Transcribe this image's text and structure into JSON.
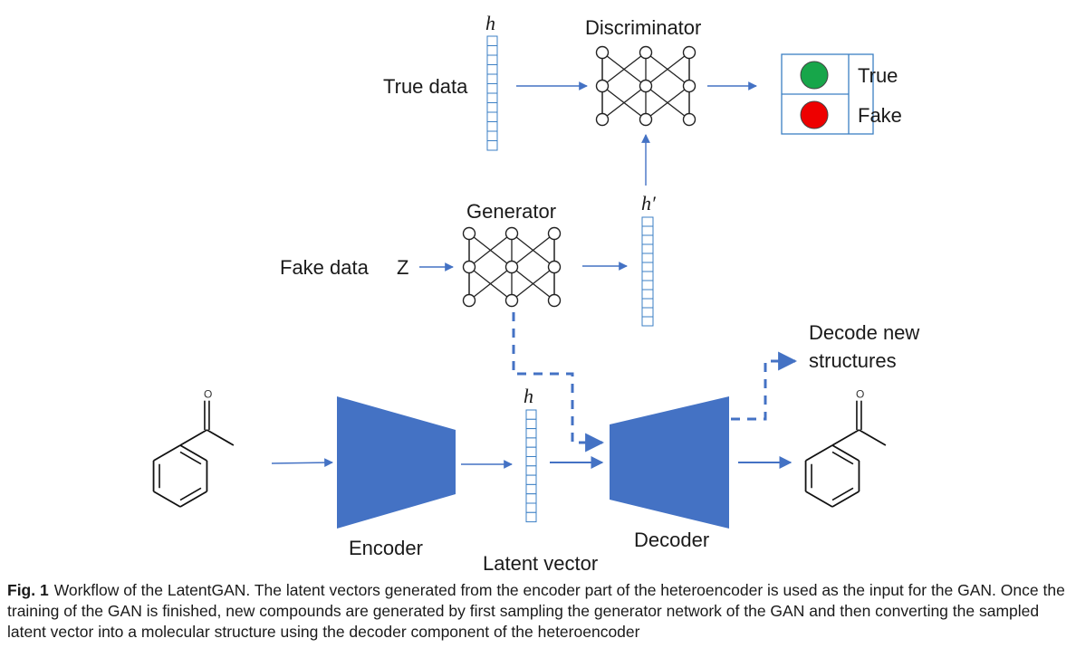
{
  "diagram": {
    "labels": {
      "h_top": "h",
      "discriminator": "Discriminator",
      "true_data": "True data",
      "true": "True",
      "fake": "Fake",
      "generator": "Generator",
      "h_prime": "h′",
      "fake_data": "Fake data",
      "z": "Z",
      "decode_new_line1": "Decode new",
      "decode_new_line2": "structures",
      "h_latent": "h",
      "encoder": "Encoder",
      "decoder": "Decoder",
      "latent_vector": "Latent vector",
      "oxygen": "O"
    },
    "colors": {
      "arrow": "#4472c4",
      "trapezoid": "#4472c4",
      "vector_border": "#3b7fc4",
      "true_dot": "#17a64a",
      "fake_dot": "#ee0000"
    },
    "icons": [
      "neural-network-icon",
      "acetophenone-molecule-icon"
    ]
  },
  "caption": {
    "label": "Fig. 1",
    "text": "Workflow of the LatentGAN. The latent vectors generated from the encoder part of the heteroencoder is used as the input for the GAN. Once the training of the GAN is finished, new compounds are generated by first sampling the generator network of the GAN and then converting the sampled latent vector into a molecular structure using the decoder component of the heteroencoder"
  }
}
